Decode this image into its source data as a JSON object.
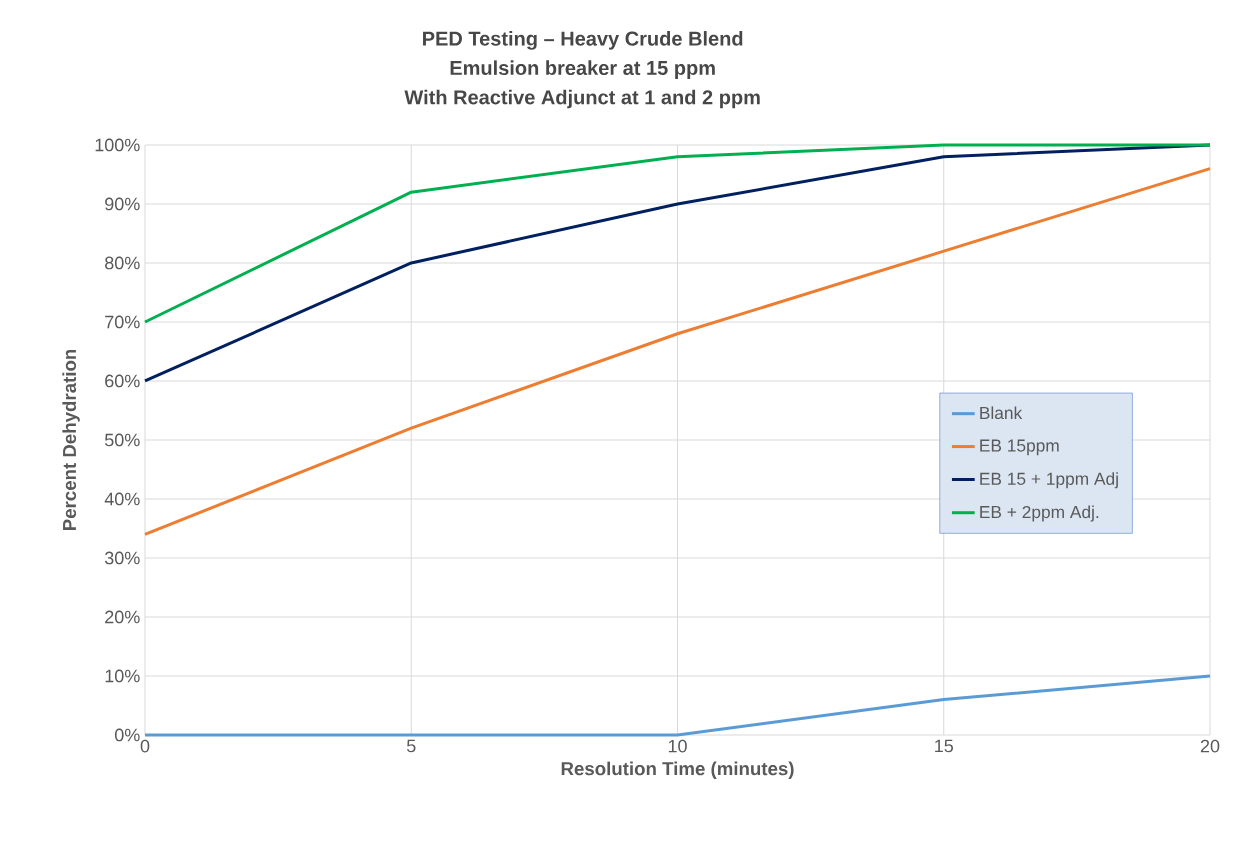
{
  "chart_data": {
    "type": "line",
    "title": "PED Testing – Heavy Crude Blend",
    "subtitle": "Emulsion breaker at 15 ppm",
    "annotations": [
      "With Reactive Adjunct at 1 and 2 ppm"
    ],
    "xlabel": "Resolution Time (minutes)",
    "ylabel": "Percent Dehydration",
    "x": [
      0,
      5,
      10,
      15,
      20
    ],
    "series": [
      {
        "name": "Blank",
        "color": "#5b9bd5",
        "values": [
          0,
          0,
          0,
          6,
          10
        ]
      },
      {
        "name": "EB 15ppm",
        "color": "#ed7d31",
        "values": [
          34,
          52,
          68,
          82,
          96
        ]
      },
      {
        "name": "EB 15 + 1ppm Adj",
        "color": "#002060",
        "values": [
          60,
          80,
          90,
          98,
          100
        ]
      },
      {
        "name": "EB + 2ppm Adj.",
        "color": "#00b050",
        "values": [
          70,
          92,
          98,
          100,
          100
        ]
      }
    ],
    "xlim": [
      0,
      20
    ],
    "xticks": [
      0,
      5,
      10,
      15,
      20
    ],
    "ylim": [
      0,
      100
    ],
    "yticks": [
      {
        "value": 0,
        "label": "0%"
      },
      {
        "value": 10,
        "label": "10%"
      },
      {
        "value": 20,
        "label": "20%"
      },
      {
        "value": 30,
        "label": "30%"
      },
      {
        "value": 40,
        "label": "40%"
      },
      {
        "value": 50,
        "label": "50%"
      },
      {
        "value": 60,
        "label": "60%"
      },
      {
        "value": 70,
        "label": "70%"
      },
      {
        "value": 80,
        "label": "80%"
      },
      {
        "value": 90,
        "label": "90%"
      },
      {
        "value": 100,
        "label": "100%"
      }
    ],
    "grid": true,
    "legend": "right",
    "marker": "none",
    "line_style": "solid"
  }
}
